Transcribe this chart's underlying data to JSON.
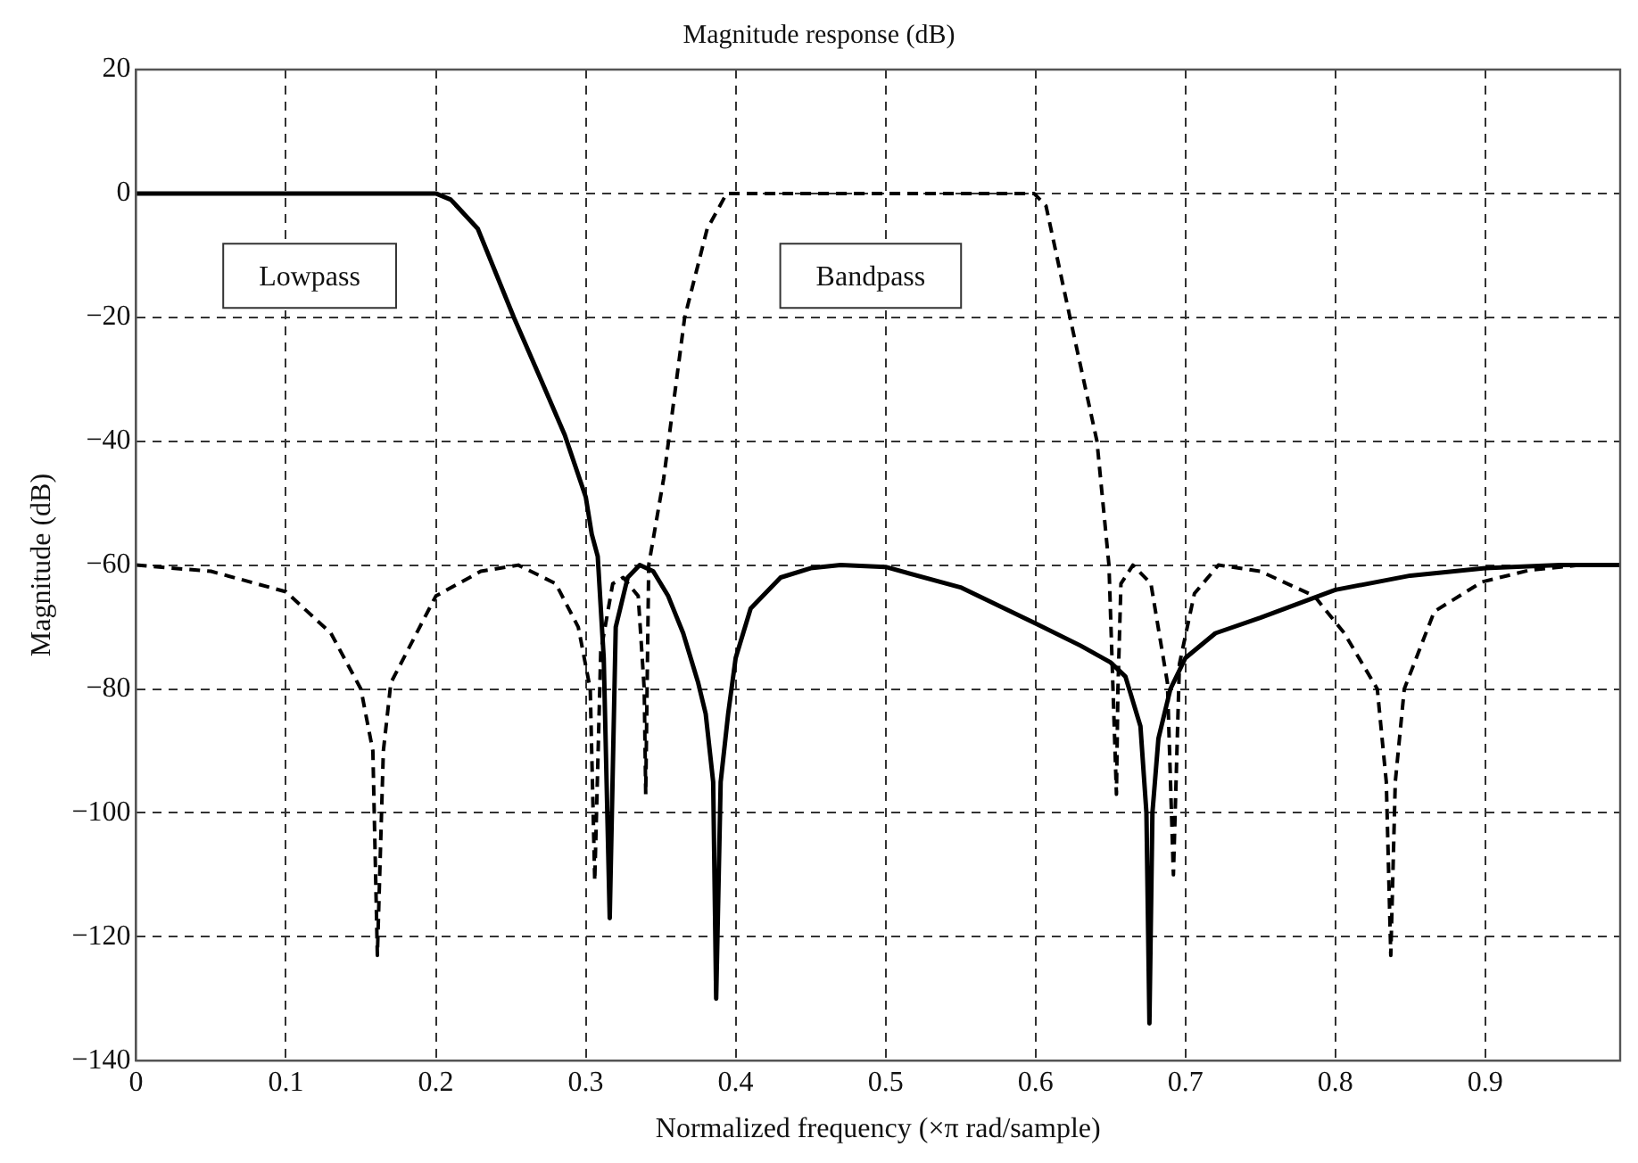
{
  "chart_data": {
    "type": "line",
    "title": "Magnitude response (dB)",
    "xlabel": "Normalized frequency (×π rad/sample)",
    "ylabel": "Magnitude (dB)",
    "xlim": [
      0,
      0.99
    ],
    "xticks": [
      0,
      0.1,
      0.2,
      0.3,
      0.4,
      0.5,
      0.6,
      0.7,
      0.8,
      0.9
    ],
    "ylim": [
      -140,
      20
    ],
    "yticks": [
      -140,
      -120,
      -100,
      -80,
      -60,
      -40,
      -20,
      0,
      20
    ],
    "grid": true,
    "legend": false,
    "marker": "none",
    "series": [
      {
        "color": "#000000",
        "line_style": "solid",
        "x": [
          0,
          0.1,
          0.2,
          0.21,
          0.228,
          0.252,
          0.27,
          0.286,
          0.3,
          0.304,
          0.308,
          0.312,
          0.316,
          0.32,
          0.328,
          0.336,
          0.345,
          0.355,
          0.365,
          0.375,
          0.38,
          0.385,
          0.387,
          0.39,
          0.395,
          0.4,
          0.41,
          0.43,
          0.45,
          0.47,
          0.5,
          0.55,
          0.6,
          0.63,
          0.65,
          0.66,
          0.67,
          0.674,
          0.676,
          0.678,
          0.682,
          0.69,
          0.7,
          0.72,
          0.75,
          0.8,
          0.85,
          0.9,
          0.95,
          0.99
        ],
        "values": [
          0,
          0,
          0,
          -1,
          -5.7,
          -20,
          -30,
          -39,
          -49,
          -55,
          -58.6,
          -75,
          -117,
          -70,
          -62,
          -60,
          -61,
          -65,
          -71,
          -79,
          -84,
          -95,
          -130,
          -95,
          -84,
          -75,
          -67,
          -62,
          -60.5,
          -60,
          -60.3,
          -63.6,
          -69.4,
          -73,
          -75.7,
          -78,
          -86,
          -100,
          -134,
          -100,
          -88,
          -80,
          -75,
          -71,
          -68.5,
          -64,
          -61.7,
          -60.5,
          -60,
          -60
        ]
      },
      {
        "color": "#000000",
        "line_style": "dashed",
        "x": [
          0,
          0.05,
          0.1,
          0.13,
          0.15,
          0.158,
          0.161,
          0.165,
          0.17,
          0.2,
          0.23,
          0.255,
          0.28,
          0.295,
          0.303,
          0.306,
          0.31,
          0.318,
          0.325,
          0.335,
          0.339,
          0.34,
          0.342,
          0.352,
          0.366,
          0.381,
          0.394,
          0.45,
          0.5,
          0.55,
          0.599,
          0.607,
          0.623,
          0.641,
          0.649,
          0.654,
          0.655,
          0.657,
          0.665,
          0.677,
          0.688,
          0.692,
          0.696,
          0.706,
          0.722,
          0.75,
          0.786,
          0.806,
          0.828,
          0.834,
          0.837,
          0.84,
          0.846,
          0.866,
          0.898,
          0.93,
          0.963,
          0.99
        ],
        "values": [
          -60,
          -61,
          -64.3,
          -71,
          -80,
          -90,
          -123,
          -90,
          -79,
          -65,
          -61,
          -60,
          -63,
          -70,
          -80,
          -111,
          -74,
          -63,
          -62,
          -65,
          -80,
          -97,
          -60,
          -46,
          -20,
          -5.7,
          0,
          0,
          0,
          0,
          0,
          -2,
          -20,
          -40,
          -60,
          -97,
          -80,
          -63,
          -60,
          -63,
          -79,
          -110,
          -76,
          -64.6,
          -60,
          -61,
          -65,
          -71,
          -80,
          -95,
          -123,
          -95,
          -80,
          -67.5,
          -62.7,
          -60.8,
          -60,
          -60
        ]
      }
    ],
    "annotations": [
      "Lowpass",
      "Bandpass"
    ]
  }
}
